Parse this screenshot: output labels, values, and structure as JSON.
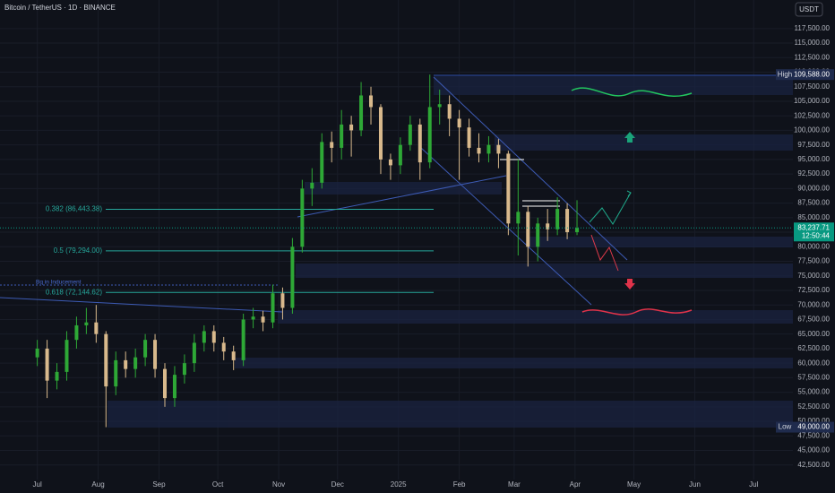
{
  "chart_data": {
    "type": "candlestick",
    "title": "Bitcoin / TetherUS · 1D · BINANCE",
    "currency": "USDT",
    "up_color": "#2ea836",
    "down_color": "#d8b98c",
    "x": [
      0,
      5,
      10,
      15,
      20,
      25,
      30,
      35,
      40,
      45,
      50,
      55,
      60,
      65,
      70,
      75,
      80,
      85,
      90,
      95,
      100,
      105,
      110,
      115,
      120,
      125,
      130,
      135,
      140,
      145,
      150,
      155,
      160,
      165,
      170,
      175,
      180,
      185,
      190,
      195,
      200,
      205,
      210,
      215,
      220,
      225,
      230,
      235,
      240,
      245,
      250,
      255,
      260,
      265,
      270,
      275
    ],
    "open": [
      61000,
      62500,
      57000,
      58500,
      64000,
      66500,
      67000,
      65000,
      56000,
      60500,
      59000,
      61000,
      64000,
      59000,
      54000,
      58000,
      60000,
      63500,
      65500,
      63500,
      62000,
      60500,
      67500,
      68000,
      67000,
      72000,
      69500,
      80000,
      90000,
      91000,
      98000,
      97000,
      101000,
      100000,
      106000,
      104000,
      95000,
      94000,
      97500,
      101000,
      94500,
      104000,
      104500,
      102000,
      100500,
      97000,
      96000,
      97500,
      96000,
      84000,
      86000,
      80000,
      84000,
      83000,
      86500,
      82500
    ],
    "high": [
      64000,
      64000,
      60000,
      65500,
      68000,
      69500,
      70000,
      65500,
      62000,
      62000,
      62500,
      65000,
      65000,
      60000,
      59500,
      61500,
      65000,
      66500,
      66500,
      64500,
      63000,
      68500,
      69500,
      69000,
      73500,
      73000,
      81500,
      91500,
      93500,
      99500,
      99800,
      103500,
      102500,
      108300,
      107500,
      104500,
      96000,
      98800,
      102500,
      102000,
      109588,
      107000,
      106000,
      103500,
      102000,
      99500,
      99000,
      98500,
      96500,
      95000,
      87000,
      85000,
      86500,
      88500,
      87500,
      88000
    ],
    "low": [
      59500,
      54000,
      55500,
      57000,
      62500,
      65000,
      63500,
      49000,
      54500,
      57500,
      57500,
      59500,
      57500,
      52500,
      52500,
      56500,
      58500,
      62000,
      62000,
      60500,
      58800,
      59500,
      66000,
      65500,
      66000,
      67500,
      68500,
      79000,
      87000,
      90000,
      94500,
      95000,
      95500,
      99000,
      101000,
      92500,
      91500,
      92500,
      96500,
      91500,
      93500,
      101000,
      99000,
      91500,
      95500,
      94500,
      94500,
      93500,
      82000,
      78500,
      76600,
      77500,
      81000,
      82000,
      81300,
      82000
    ],
    "close": [
      62500,
      57000,
      58500,
      64000,
      66500,
      67000,
      65000,
      56000,
      60500,
      59000,
      61000,
      64000,
      59000,
      54000,
      58000,
      60000,
      63500,
      65500,
      63500,
      62000,
      60500,
      67500,
      68000,
      67000,
      72000,
      69500,
      80000,
      90000,
      91000,
      98000,
      97000,
      101000,
      100000,
      106000,
      104000,
      95000,
      94000,
      97500,
      101000,
      94500,
      104000,
      104500,
      102000,
      100500,
      97000,
      96000,
      97500,
      96000,
      84000,
      86000,
      80000,
      84000,
      83000,
      86500,
      82500,
      83237.71
    ],
    "xlim": [
      -19,
      385
    ],
    "xticks": [
      {
        "value": 0,
        "label": "Jul"
      },
      {
        "value": 31,
        "label": "Aug"
      },
      {
        "value": 62,
        "label": "Sep"
      },
      {
        "value": 92,
        "label": "Oct"
      },
      {
        "value": 123,
        "label": "Nov"
      },
      {
        "value": 153,
        "label": "Dec"
      },
      {
        "value": 184,
        "label": "2025"
      },
      {
        "value": 215,
        "label": "Feb"
      },
      {
        "value": 243,
        "label": "Mar"
      },
      {
        "value": 274,
        "label": "Apr"
      },
      {
        "value": 304,
        "label": "May"
      },
      {
        "value": 335,
        "label": "Jun"
      },
      {
        "value": 365,
        "label": "Jul"
      }
    ],
    "ylim": [
      40000,
      122400
    ],
    "yticks": [
      {
        "value": 42500,
        "label": "42,500.00"
      },
      {
        "value": 45000,
        "label": "45,000.00"
      },
      {
        "value": 47500,
        "label": "47,500.00"
      },
      {
        "value": 50000,
        "label": "50,000.00"
      },
      {
        "value": 52500,
        "label": "52,500.00"
      },
      {
        "value": 55000,
        "label": "55,000.00"
      },
      {
        "value": 57500,
        "label": "57,500.00"
      },
      {
        "value": 60000,
        "label": "60,000.00"
      },
      {
        "value": 62500,
        "label": "62,500.00"
      },
      {
        "value": 65000,
        "label": "65,000.00"
      },
      {
        "value": 67500,
        "label": "67,500.00"
      },
      {
        "value": 70000,
        "label": "70,000.00"
      },
      {
        "value": 72500,
        "label": "72,500.00"
      },
      {
        "value": 75000,
        "label": "75,000.00"
      },
      {
        "value": 77500,
        "label": "77,500.00"
      },
      {
        "value": 80000,
        "label": "80,000.00"
      },
      {
        "value": 82500,
        "label": "82,500.00"
      },
      {
        "value": 85000,
        "label": "85,000.00"
      },
      {
        "value": 87500,
        "label": "87,500.00"
      },
      {
        "value": 90000,
        "label": "90,000.00"
      },
      {
        "value": 92500,
        "label": "92,500.00"
      },
      {
        "value": 95000,
        "label": "95,000.00"
      },
      {
        "value": 97500,
        "label": "97,500.00"
      },
      {
        "value": 100000,
        "label": "100,000.00"
      },
      {
        "value": 102500,
        "label": "102,500.00"
      },
      {
        "value": 105000,
        "label": "105,000.00"
      },
      {
        "value": 107500,
        "label": "107,500.00"
      },
      {
        "value": 110000,
        "label": "110,000.00"
      },
      {
        "value": 112500,
        "label": "112,500.00"
      },
      {
        "value": 115000,
        "label": "115,000.00"
      },
      {
        "value": 117500,
        "label": "117,500.00"
      }
    ],
    "fib_levels": [
      {
        "label": "0.382 (86,443.38)",
        "value": 86443.38
      },
      {
        "label": "0.5 (79,294.00)",
        "value": 79294
      },
      {
        "label": "0.618 (72,144.62)",
        "value": 72144.62
      }
    ],
    "annotation": "Bq in Inducement",
    "high_marker": {
      "tag": "High",
      "label": "109,588.00",
      "value": 109588
    },
    "low_marker": {
      "tag": "Low",
      "label": "49,000.00",
      "value": 49000
    },
    "last_price": {
      "label": "83,237.71",
      "value": 83237.71,
      "countdown": "12:50:44"
    }
  }
}
